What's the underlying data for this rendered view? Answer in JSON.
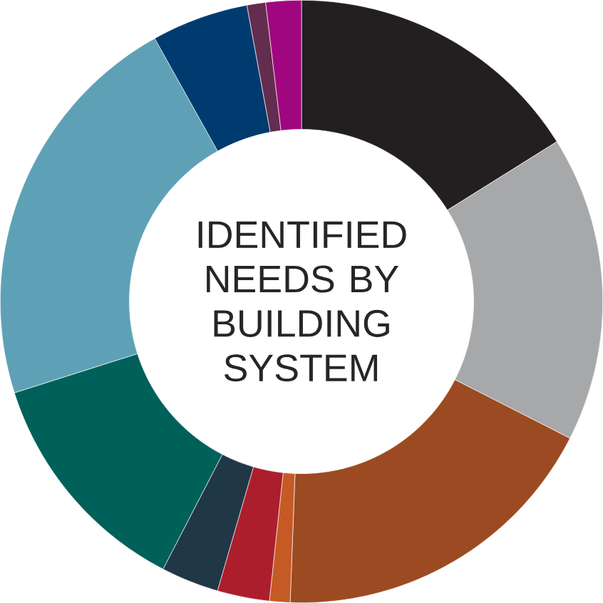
{
  "chart_data": {
    "type": "donut",
    "title": "IDENTIFIED NEEDS BY BUILDING SYSTEM",
    "categories": [
      null,
      null,
      null,
      null,
      null,
      null,
      null,
      null,
      null,
      null,
      null
    ],
    "values": [
      16.1,
      16.4,
      18.1,
      1.1,
      2.8,
      3.1,
      12.5,
      21.8,
      5.2,
      1.0,
      1.9
    ],
    "colors": [
      "#231f20",
      "#a7a8aa",
      "#9c4a21",
      "#c55a25",
      "#ad1e2d",
      "#203746",
      "#00605a",
      "#5ea1b7",
      "#003b6f",
      "#632d4f",
      "#a0067f"
    ]
  }
}
